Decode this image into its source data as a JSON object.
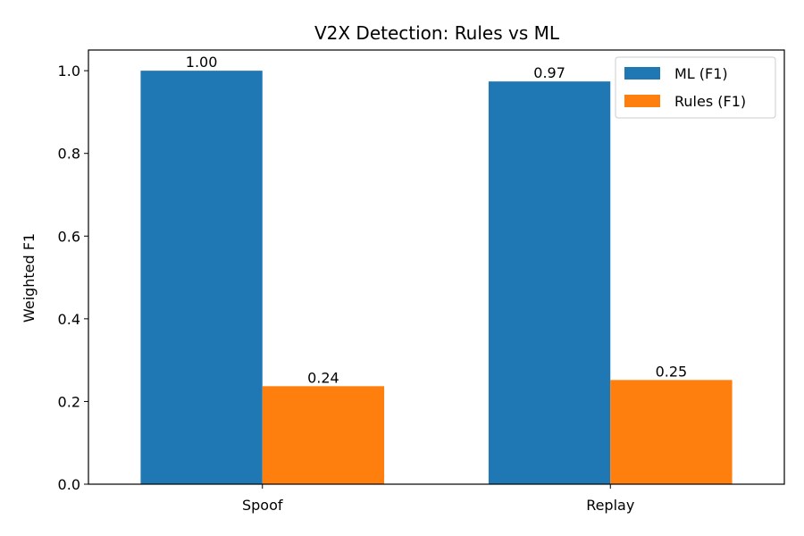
{
  "chart_data": {
    "type": "bar",
    "title": "V2X Detection: Rules vs ML",
    "xlabel": "",
    "ylabel": "Weighted F1",
    "categories": [
      "Spoof",
      "Replay"
    ],
    "series": [
      {
        "name": "ML (F1)",
        "values": [
          1.0,
          0.974
        ],
        "color": "#1f77b4"
      },
      {
        "name": "Rules (F1)",
        "values": [
          0.237,
          0.252
        ],
        "color": "#ff7f0e"
      }
    ],
    "data_labels": [
      [
        "1.00",
        "0.97"
      ],
      [
        "0.24",
        "0.25"
      ]
    ],
    "ylim": [
      0,
      1.05
    ],
    "yticks": [
      0.0,
      0.2,
      0.4,
      0.6,
      0.8,
      1.0
    ],
    "ytick_labels": [
      "0.0",
      "0.2",
      "0.4",
      "0.6",
      "0.8",
      "1.0"
    ],
    "grid": false,
    "legend_position": "top-right"
  }
}
